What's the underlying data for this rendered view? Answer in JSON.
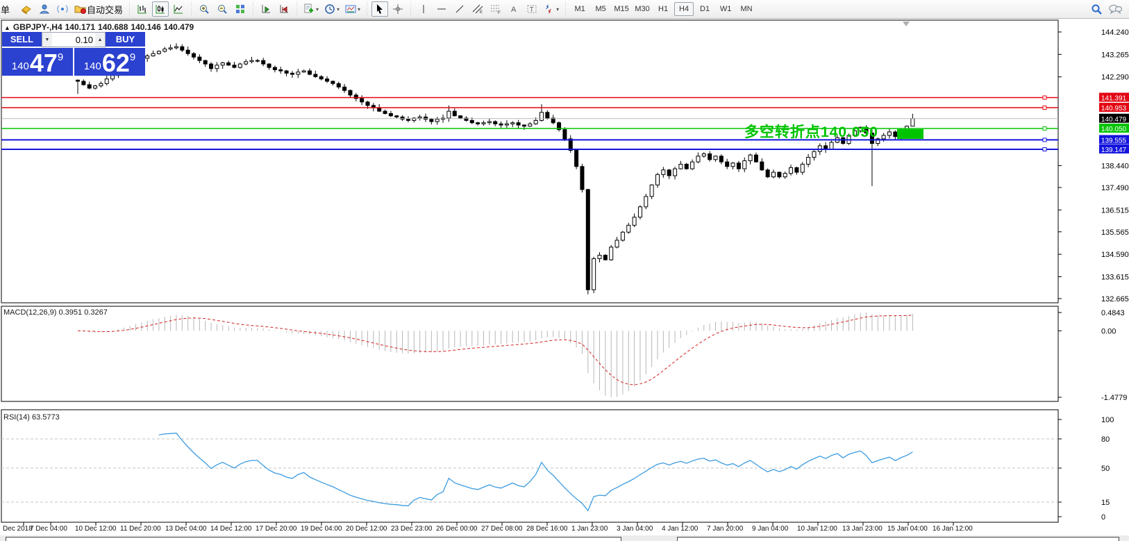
{
  "toolbar": {
    "new_order": "单",
    "autotrading": "自动交易",
    "timeframes": [
      {
        "label": "M1",
        "active": false
      },
      {
        "label": "M5",
        "active": false
      },
      {
        "label": "M15",
        "active": false
      },
      {
        "label": "M30",
        "active": false
      },
      {
        "label": "H1",
        "active": false
      },
      {
        "label": "H4",
        "active": true
      },
      {
        "label": "D1",
        "active": false
      },
      {
        "label": "W1",
        "active": false
      },
      {
        "label": "MN",
        "active": false
      }
    ]
  },
  "chart": {
    "title": {
      "collapse": "▲",
      "symbol": "GBPJPY-,H4",
      "open": "140.171",
      "high": "140.688",
      "low": "140.146",
      "close": "140.479"
    },
    "one_click": {
      "sell_label": "SELL",
      "buy_label": "BUY",
      "volume": "0.10",
      "sell_small": "140",
      "sell_big": "47",
      "sell_sup": "9",
      "buy_small": "140",
      "buy_big": "62",
      "buy_sup": "9"
    },
    "annotation": {
      "text": "多空转折点140.050"
    }
  },
  "indicators": {
    "macd": {
      "name": "MACD(12,26,9)",
      "main": "0.3951",
      "signal": "0.3267",
      "axis_max": "0.4843",
      "axis_zero": "0.00",
      "axis_min": "-1.4779"
    },
    "rsi": {
      "name": "RSI(14)",
      "value": "63.5773",
      "axis": [
        "100",
        "80",
        "50",
        "15",
        "0"
      ],
      "levels": [
        80,
        50,
        15
      ]
    }
  },
  "colors": {
    "panel_blue": "#2b41d0",
    "line_red": "#e30613",
    "line_green": "#00c400",
    "line_blue": "#1414dd",
    "current_black": "#000000",
    "current_line": "#b8b8b8",
    "rsi_line": "#3a9be0",
    "macd_signal": "#d42020",
    "macd_hist": "#b6b6b6",
    "candle_outline": "#000000"
  },
  "chart_data": {
    "type": "candlestick",
    "symbol": "GBPJPY-,H4",
    "timeframe": "H4",
    "current_bar": {
      "open": 140.171,
      "high": 140.688,
      "low": 140.146,
      "close": 140.479
    },
    "y_ticks": [
      144.24,
      143.265,
      142.29,
      138.44,
      137.49,
      136.515,
      135.565,
      134.59,
      133.615,
      132.665
    ],
    "y_axis": {
      "top_price": 144.24,
      "bottom_price": 132.665
    },
    "hlines": [
      {
        "price": 141.391,
        "label": "141.391",
        "type": "resistance",
        "color_key": "line_red"
      },
      {
        "price": 140.953,
        "label": "140.953",
        "type": "resistance",
        "color_key": "line_red"
      },
      {
        "price": 140.479,
        "label": "140.479",
        "type": "current_bid",
        "color_key": "current_black"
      },
      {
        "price": 140.05,
        "label": "140.050",
        "type": "pivot",
        "color_key": "line_green"
      },
      {
        "price": 139.555,
        "label": "139.555",
        "type": "support",
        "color_key": "line_blue"
      },
      {
        "price": 139.147,
        "label": "139.147",
        "type": "support",
        "color_key": "line_blue"
      }
    ],
    "closes": [
      142.1,
      141.95,
      141.8,
      141.9,
      142.0,
      142.2,
      142.35,
      142.5,
      142.7,
      142.85,
      142.95,
      143.1,
      143.2,
      143.3,
      143.4,
      143.5,
      143.55,
      143.6,
      143.45,
      143.3,
      143.15,
      143.0,
      142.85,
      142.65,
      142.8,
      142.9,
      142.8,
      142.7,
      142.85,
      142.95,
      143.0,
      143.0,
      142.85,
      142.7,
      142.6,
      142.55,
      142.45,
      142.4,
      142.5,
      142.55,
      142.4,
      142.3,
      142.2,
      142.1,
      142.0,
      141.85,
      141.7,
      141.5,
      141.35,
      141.2,
      141.05,
      140.95,
      140.8,
      140.7,
      140.6,
      140.55,
      140.45,
      140.4,
      140.5,
      140.55,
      140.45,
      140.35,
      140.45,
      140.5,
      140.8,
      140.6,
      140.5,
      140.4,
      140.3,
      140.25,
      140.3,
      140.35,
      140.25,
      140.2,
      140.25,
      140.3,
      140.2,
      140.15,
      140.25,
      140.4,
      140.75,
      140.5,
      140.3,
      140.0,
      139.6,
      139.1,
      138.4,
      137.4,
      133.05,
      134.4,
      134.55,
      134.35,
      134.9,
      135.2,
      135.55,
      135.85,
      136.2,
      136.65,
      137.1,
      137.6,
      138.05,
      138.25,
      138.0,
      138.3,
      138.5,
      138.3,
      138.6,
      138.85,
      138.95,
      138.7,
      138.85,
      138.6,
      138.4,
      138.55,
      138.3,
      138.65,
      138.9,
      138.6,
      138.25,
      137.95,
      138.15,
      137.95,
      138.1,
      138.35,
      138.15,
      138.5,
      138.8,
      139.05,
      139.3,
      139.15,
      139.45,
      139.65,
      139.4,
      139.75,
      139.95,
      140.1,
      139.85,
      139.4,
      139.6,
      139.75,
      139.9,
      139.7,
      139.95,
      140.15,
      140.48
    ],
    "overrides": {
      "0": {
        "low": 141.55
      },
      "17": {
        "high": 143.75
      },
      "64": {
        "high": 141.05
      },
      "80": {
        "high": 141.1
      },
      "88": {
        "low": 132.85
      },
      "137": {
        "low": 137.55
      },
      "144": {
        "high": 140.688,
        "low": 140.146
      }
    },
    "x_labels": [
      "Dec 2018",
      "7 Dec 04:00",
      "10 Dec 12:00",
      "11 Dec 20:00",
      "13 Dec 04:00",
      "14 Dec 12:00",
      "17 Dec 20:00",
      "19 Dec 04:00",
      "20 Dec 12:00",
      "23 Dec 23:00",
      "26 Dec 00:00",
      "27 Dec 08:00",
      "28 Dec 16:00",
      "1 Jan 23:00",
      "3 Jan 04:00",
      "4 Jan 12:00",
      "7 Jan 20:00",
      "9 Jan 04:00",
      "10 Jan 12:00",
      "13 Jan 23:00",
      "15 Jan 04:00",
      "16 Jan 12:00"
    ]
  }
}
